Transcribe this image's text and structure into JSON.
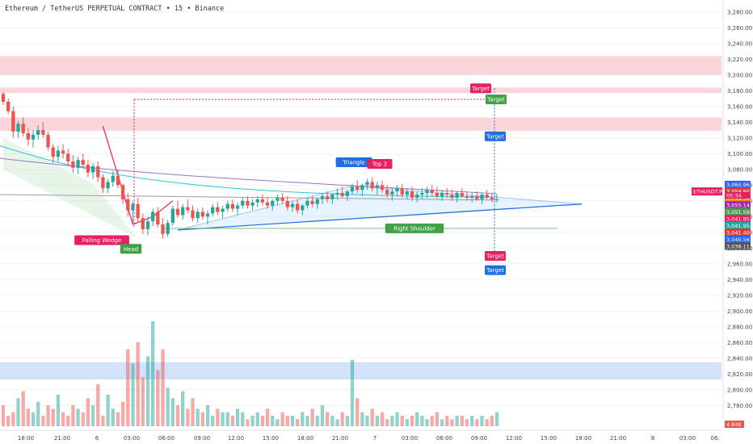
{
  "header": {
    "symbol": "Ethereum / TetherUS PERPETUAL CONTRACT",
    "sep1": "•",
    "interval": "15",
    "sep2": "•",
    "exchange": "Binance"
  },
  "colors": {
    "up": "#26a69a",
    "down": "#ef5350",
    "pattern_blue": "#1e6fe0",
    "target_red": "#e91e63",
    "target_green": "#43a047",
    "target_blue": "#1e6fe0",
    "resistance_zone": "#f8c8cf",
    "support_zone": "#c8daf8"
  },
  "chart_data": {
    "type": "candlestick",
    "title": "Ethereum / TetherUS PERPETUAL CONTRACT • 15 • Binance",
    "y_axis_ticks": [
      "3,280.00",
      "3,260.00",
      "3,240.00",
      "3,220.00",
      "3,200.00",
      "3,180.00",
      "3,160.00",
      "3,140.00",
      "3,120.00",
      "3,100.00",
      "3,080.00",
      "3,060.00",
      "3,040.00",
      "3,020.00",
      "3,000.00",
      "2,980.00",
      "2,960.00",
      "2,940.00",
      "2,920.00",
      "2,900.00",
      "2,880.00",
      "2,860.00",
      "2,840.00",
      "2,820.00",
      "2,800.00",
      "2,780.00"
    ],
    "ylim": [
      2770,
      3285
    ],
    "x_axis_ticks": [
      "18:00",
      "21:00",
      "6",
      "03:00",
      "06:00",
      "09:00",
      "12:00",
      "15:00",
      "18:00",
      "21:00",
      "7",
      "03:00",
      "06:00",
      "09:00",
      "12:00",
      "15:00",
      "18:00",
      "21:00",
      "8",
      "03:00",
      "06:"
    ],
    "price_labels": [
      {
        "text": "3,060.96",
        "value": 3060.96,
        "color": "#2962ff"
      },
      {
        "text": "3,059.80",
        "value": 3059.8,
        "color": "#e53935"
      },
      {
        "text": "3,059.54",
        "value": 3059.54,
        "color": "#f57c00"
      },
      {
        "text": "3,055.14",
        "value": 3055.14,
        "color": "#9c27b0"
      },
      {
        "text": "3,051.59",
        "value": 3051.59,
        "color": "#43a047"
      },
      {
        "text": "3,041.95",
        "value": 3041.95,
        "color": "#e91e63"
      },
      {
        "text": "3,041.95",
        "value": 3041.95,
        "color": "#26a69a"
      },
      {
        "text": "3,041.40",
        "value": 3041.4,
        "color": "#e53935"
      },
      {
        "text": "3,040.56",
        "value": 3040.56,
        "color": "#2962ff"
      },
      {
        "text": "3,038.11",
        "value": 3038.11,
        "color": "#555555"
      }
    ],
    "countdown": "05:34",
    "ticker_tag": "ETHUSDT.P",
    "volume_label": "4.84K",
    "pattern_labels": [
      {
        "text": "Triangle",
        "color": "#1e6fe0",
        "value": 3089
      },
      {
        "text": "Top 2",
        "color": "#e91e63",
        "value": 3087
      },
      {
        "text": "Right Shoulder",
        "color": "#43a047",
        "value": 3005
      },
      {
        "text": "Falling Wedge",
        "color": "#e91e63",
        "value": 2990
      },
      {
        "text": "Head",
        "color": "#43a047",
        "value": 2979
      }
    ],
    "targets": [
      {
        "text": "Target",
        "color": "#e91e63",
        "value": 3183
      },
      {
        "text": "Target",
        "color": "#43a047",
        "value": 3169
      },
      {
        "text": "Target",
        "color": "#1e6fe0",
        "value": 3122
      },
      {
        "text": "Target",
        "color": "#e91e63",
        "value": 2970
      },
      {
        "text": "Target",
        "color": "#1e6fe0",
        "value": 2952
      }
    ],
    "zones": [
      {
        "name": "resistance",
        "from": 3200,
        "to": 3224
      },
      {
        "name": "resistance",
        "from": 3177,
        "to": 3184
      },
      {
        "name": "resistance",
        "from": 3129,
        "to": 3146
      },
      {
        "name": "volume-band",
        "from": 2813,
        "to": 2835
      }
    ],
    "candles": [
      [
        3176,
        3178,
        3162,
        3166
      ],
      [
        3166,
        3170,
        3150,
        3154
      ],
      [
        3154,
        3160,
        3120,
        3128
      ],
      [
        3128,
        3142,
        3120,
        3138
      ],
      [
        3138,
        3146,
        3122,
        3126
      ],
      [
        3126,
        3132,
        3110,
        3118
      ],
      [
        3118,
        3130,
        3108,
        3124
      ],
      [
        3124,
        3136,
        3118,
        3130
      ],
      [
        3130,
        3140,
        3120,
        3124
      ],
      [
        3124,
        3128,
        3104,
        3108
      ],
      [
        3108,
        3112,
        3088,
        3096
      ],
      [
        3096,
        3110,
        3090,
        3104
      ],
      [
        3104,
        3112,
        3094,
        3100
      ],
      [
        3100,
        3106,
        3084,
        3090
      ],
      [
        3090,
        3098,
        3076,
        3082
      ],
      [
        3082,
        3096,
        3074,
        3092
      ],
      [
        3092,
        3100,
        3082,
        3086
      ],
      [
        3086,
        3092,
        3070,
        3076
      ],
      [
        3076,
        3088,
        3068,
        3084
      ],
      [
        3084,
        3090,
        3064,
        3070
      ],
      [
        3070,
        3074,
        3050,
        3056
      ],
      [
        3056,
        3068,
        3050,
        3064
      ],
      [
        3064,
        3078,
        3058,
        3072
      ],
      [
        3072,
        3080,
        3056,
        3060
      ],
      [
        3060,
        3062,
        3036,
        3042
      ],
      [
        3042,
        3050,
        3020,
        3028
      ],
      [
        3028,
        3040,
        3010,
        3036
      ],
      [
        3036,
        3044,
        3012,
        3018
      ],
      [
        3018,
        3024,
        2998,
        3004
      ],
      [
        3004,
        3020,
        2996,
        3014
      ],
      [
        3014,
        3030,
        3008,
        3026
      ],
      [
        3026,
        3032,
        3006,
        3010
      ],
      [
        3010,
        3018,
        2992,
        2998
      ],
      [
        2998,
        3016,
        2994,
        3012
      ],
      [
        3012,
        3034,
        3008,
        3030
      ],
      [
        3030,
        3040,
        3018,
        3022
      ],
      [
        3022,
        3036,
        3016,
        3032
      ],
      [
        3032,
        3042,
        3024,
        3028
      ],
      [
        3028,
        3034,
        3014,
        3018
      ],
      [
        3018,
        3030,
        3012,
        3026
      ],
      [
        3026,
        3032,
        3016,
        3020
      ],
      [
        3020,
        3028,
        3010,
        3024
      ],
      [
        3024,
        3036,
        3020,
        3032
      ],
      [
        3032,
        3038,
        3022,
        3026
      ],
      [
        3026,
        3034,
        3018,
        3030
      ],
      [
        3030,
        3040,
        3026,
        3036
      ],
      [
        3036,
        3042,
        3026,
        3030
      ],
      [
        3030,
        3038,
        3022,
        3034
      ],
      [
        3034,
        3044,
        3030,
        3040
      ],
      [
        3040,
        3046,
        3030,
        3034
      ],
      [
        3034,
        3042,
        3028,
        3038
      ],
      [
        3038,
        3046,
        3032,
        3042
      ],
      [
        3042,
        3048,
        3034,
        3038
      ],
      [
        3038,
        3044,
        3030,
        3034
      ],
      [
        3034,
        3042,
        3028,
        3040
      ],
      [
        3040,
        3048,
        3034,
        3044
      ],
      [
        3044,
        3050,
        3036,
        3040
      ],
      [
        3040,
        3046,
        3028,
        3032
      ],
      [
        3032,
        3040,
        3026,
        3036
      ],
      [
        3036,
        3042,
        3024,
        3028
      ],
      [
        3028,
        3036,
        3022,
        3034
      ],
      [
        3034,
        3044,
        3030,
        3040
      ],
      [
        3040,
        3046,
        3032,
        3036
      ],
      [
        3036,
        3044,
        3030,
        3042
      ],
      [
        3042,
        3050,
        3036,
        3046
      ],
      [
        3046,
        3052,
        3038,
        3042
      ],
      [
        3042,
        3050,
        3036,
        3048
      ],
      [
        3048,
        3056,
        3042,
        3050
      ],
      [
        3050,
        3058,
        3044,
        3046
      ],
      [
        3046,
        3054,
        3040,
        3052
      ],
      [
        3052,
        3062,
        3048,
        3058
      ],
      [
        3058,
        3066,
        3050,
        3054
      ],
      [
        3054,
        3062,
        3046,
        3060
      ],
      [
        3060,
        3068,
        3054,
        3064
      ],
      [
        3064,
        3070,
        3052,
        3056
      ],
      [
        3056,
        3064,
        3048,
        3060
      ],
      [
        3060,
        3066,
        3050,
        3054
      ],
      [
        3054,
        3060,
        3044,
        3048
      ],
      [
        3048,
        3056,
        3040,
        3052
      ],
      [
        3052,
        3060,
        3046,
        3056
      ],
      [
        3056,
        3062,
        3044,
        3048
      ],
      [
        3048,
        3056,
        3042,
        3052
      ],
      [
        3052,
        3058,
        3040,
        3044
      ],
      [
        3044,
        3052,
        3038,
        3048
      ],
      [
        3048,
        3056,
        3042,
        3050
      ],
      [
        3050,
        3058,
        3044,
        3054
      ],
      [
        3054,
        3060,
        3046,
        3050
      ],
      [
        3050,
        3058,
        3042,
        3046
      ],
      [
        3046,
        3054,
        3040,
        3050
      ],
      [
        3050,
        3056,
        3044,
        3048
      ],
      [
        3048,
        3054,
        3040,
        3044
      ],
      [
        3044,
        3052,
        3038,
        3050
      ],
      [
        3050,
        3056,
        3044,
        3046
      ],
      [
        3046,
        3052,
        3040,
        3044
      ],
      [
        3044,
        3050,
        3038,
        3046
      ],
      [
        3046,
        3052,
        3040,
        3042
      ],
      [
        3042,
        3050,
        3036,
        3048
      ],
      [
        3048,
        3054,
        3042,
        3044
      ],
      [
        3044,
        3050,
        3038,
        3042
      ],
      [
        3042,
        3048,
        3038,
        3042
      ]
    ],
    "volume": [
      6,
      3,
      4,
      8,
      10,
      5,
      4,
      7,
      3,
      6,
      5,
      9,
      4,
      3,
      6,
      5,
      4,
      8,
      6,
      12,
      3,
      9,
      5,
      4,
      7,
      22,
      18,
      24,
      14,
      20,
      30,
      16,
      22,
      11,
      8,
      6,
      10,
      5,
      8,
      5,
      4,
      6,
      3,
      5,
      4,
      4,
      3,
      5,
      4,
      2,
      3,
      4,
      3,
      5,
      3,
      2,
      4,
      3,
      3,
      2,
      4,
      3,
      5,
      3,
      6,
      4,
      3,
      2,
      4,
      3,
      19,
      8,
      4,
      3,
      5,
      3,
      4,
      2,
      3,
      4,
      3,
      2,
      3,
      4,
      3,
      2,
      3,
      4,
      2,
      3,
      2,
      3,
      3,
      2,
      3,
      2,
      3,
      2,
      3,
      4
    ]
  }
}
